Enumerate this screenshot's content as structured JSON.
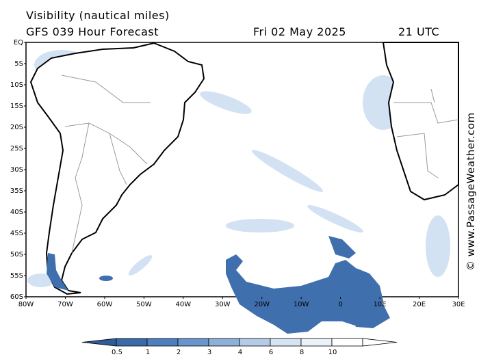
{
  "title_line1": "Visibility (nautical miles)",
  "title_model": "GFS 039 Hour Forecast",
  "title_date": "Fri 02 May 2025",
  "title_time": "21 UTC",
  "credit": "© www.PassageWeather.com",
  "lat_labels": [
    "EQ",
    "5S",
    "10S",
    "15S",
    "20S",
    "25S",
    "30S",
    "35S",
    "40S",
    "45S",
    "50S",
    "55S",
    "60S"
  ],
  "lon_labels": [
    "80W",
    "70W",
    "60W",
    "50W",
    "40W",
    "30W",
    "20W",
    "10W",
    "0",
    "10E",
    "20E",
    "30E"
  ],
  "legend": {
    "labels": [
      "0.5",
      "1",
      "2",
      "3",
      "4",
      "6",
      "8",
      "10"
    ],
    "colors": [
      "#3a6aa8",
      "#4d7fbd",
      "#6a95cb",
      "#8eafd9",
      "#b3cbe7",
      "#d6e3f3",
      "#ecf2fa",
      "#ffffff"
    ]
  },
  "colors": {
    "fog_dense": "#3f6fad",
    "fog_light": "#a9c4e6",
    "land": "#ffffff",
    "coast": "#000000",
    "border": "#999999"
  }
}
